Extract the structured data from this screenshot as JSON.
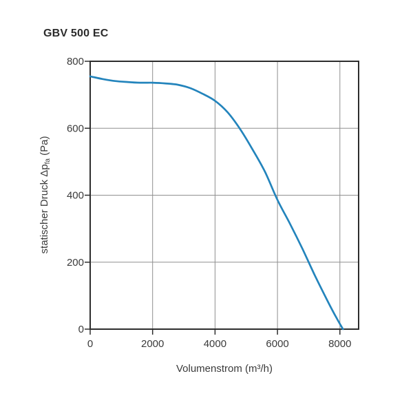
{
  "chart_data": {
    "type": "line",
    "title": "GBV 500 EC",
    "xlabel": "Volumenstrom (m³/h)",
    "ylabel": "statischer Druck Δpfa (Pa)",
    "ylabel_parts": {
      "pre": "statischer Druck Δp",
      "sub": "fa",
      "post": " (Pa)"
    },
    "xlim": [
      0,
      8600
    ],
    "ylim": [
      0,
      800
    ],
    "x_ticks": [
      0,
      2000,
      4000,
      6000,
      8000
    ],
    "y_ticks": [
      0,
      200,
      400,
      600,
      800
    ],
    "grid": true,
    "legend": "none",
    "series": [
      {
        "name": "GBV 500 EC",
        "color": "#2384bc",
        "points": [
          [
            0,
            755
          ],
          [
            400,
            747
          ],
          [
            800,
            741
          ],
          [
            1200,
            738
          ],
          [
            1600,
            736
          ],
          [
            2000,
            736
          ],
          [
            2400,
            734
          ],
          [
            2800,
            730
          ],
          [
            3200,
            720
          ],
          [
            3600,
            703
          ],
          [
            4000,
            682
          ],
          [
            4400,
            648
          ],
          [
            4800,
            598
          ],
          [
            5200,
            537
          ],
          [
            5600,
            470
          ],
          [
            6000,
            386
          ],
          [
            6400,
            315
          ],
          [
            6800,
            240
          ],
          [
            7200,
            160
          ],
          [
            7600,
            85
          ],
          [
            7900,
            32
          ],
          [
            8100,
            0
          ]
        ]
      }
    ]
  },
  "colors": {
    "background": "#ffffff",
    "axis": "#2d2d2d",
    "grid": "#8f8f8f",
    "text": "#3a3a3a",
    "curve": "#2384bc"
  }
}
